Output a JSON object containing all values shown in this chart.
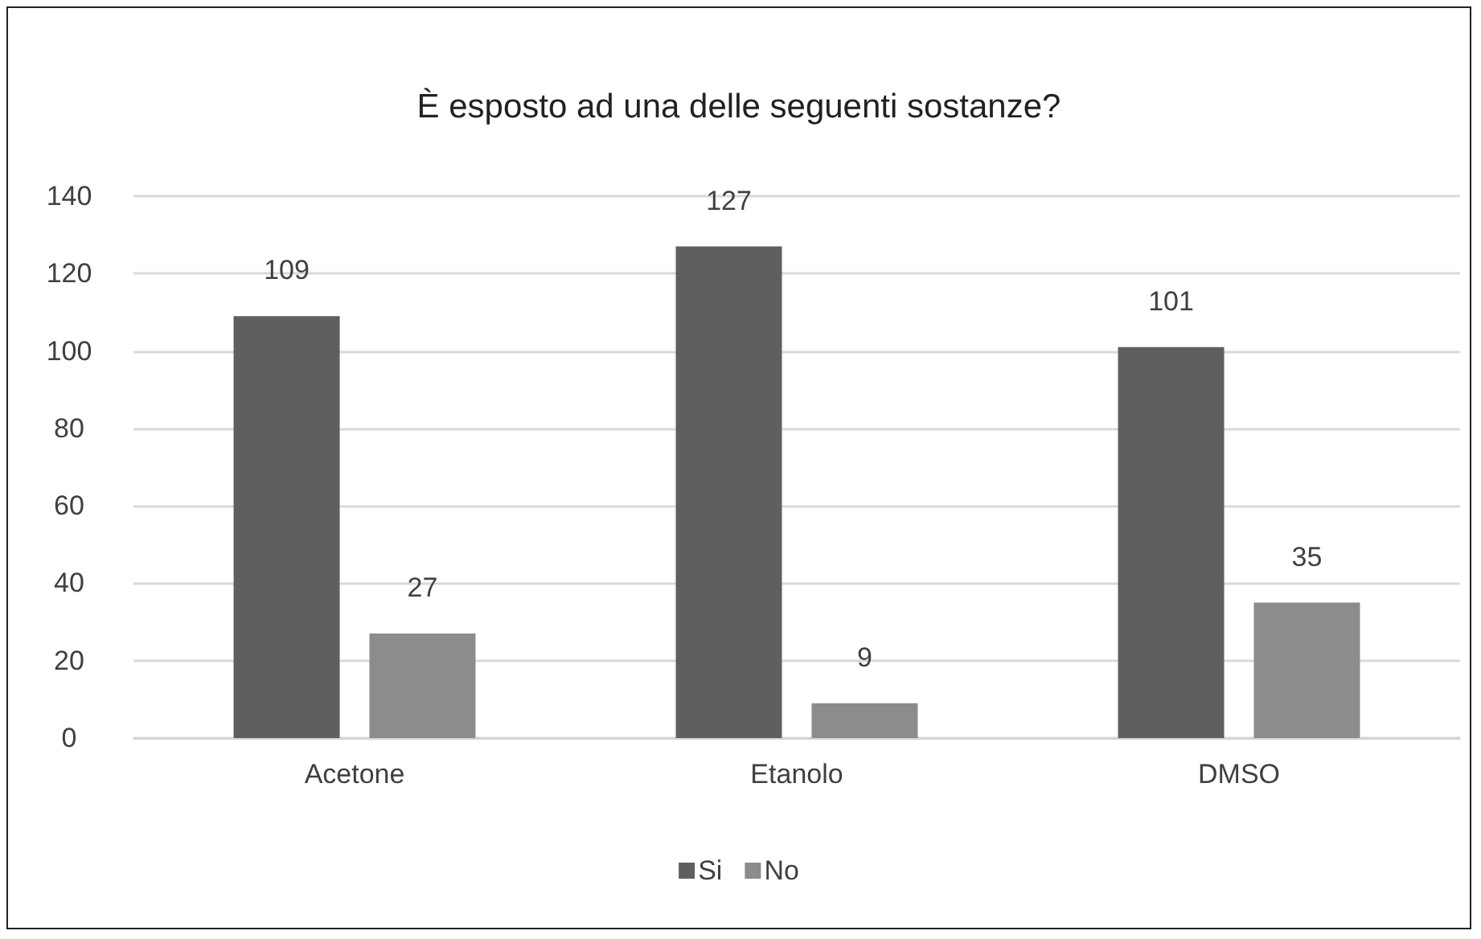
{
  "chart_data": {
    "type": "bar",
    "title": "È esposto ad una delle seguenti sostanze?",
    "categories": [
      "Acetone",
      "Etanolo",
      "DMSO"
    ],
    "series": [
      {
        "name": "Si",
        "color": "#5f5f5f",
        "values": [
          109,
          127,
          101
        ]
      },
      {
        "name": "No",
        "color": "#8c8c8c",
        "values": [
          27,
          9,
          35
        ]
      }
    ],
    "ylim": [
      0,
      140
    ],
    "yticks": [
      0,
      20,
      40,
      60,
      80,
      100,
      120,
      140
    ],
    "grid": "y",
    "legend": "bottom",
    "data_labels": true
  }
}
